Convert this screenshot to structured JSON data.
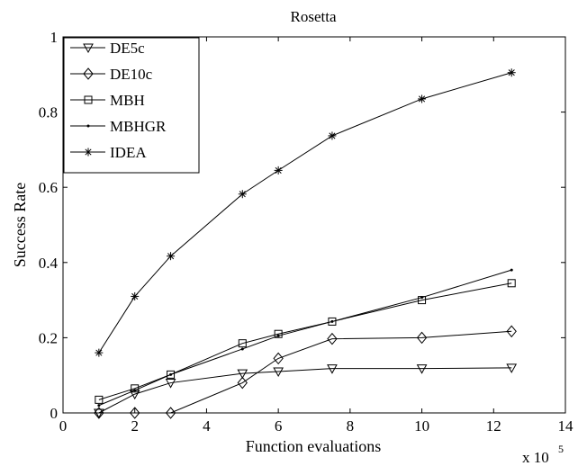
{
  "chart_data": {
    "type": "line",
    "title": "Rosetta",
    "xlabel": "Function evaluations",
    "ylabel": "Success Rate",
    "x_multiplier": {
      "base": "x 10",
      "exponent": "5"
    },
    "xlim": [
      0,
      14
    ],
    "ylim": [
      0,
      1
    ],
    "xticks": [
      0,
      2,
      4,
      6,
      8,
      10,
      12,
      14
    ],
    "yticks": [
      0,
      0.2,
      0.4,
      0.6,
      0.8,
      1
    ],
    "xtick_labels": [
      "0",
      "2",
      "4",
      "6",
      "8",
      "10",
      "12",
      "14"
    ],
    "ytick_labels": [
      "0",
      "0.2",
      "0.4",
      "0.6",
      "0.8",
      "1"
    ],
    "grid": false,
    "legend_position": "top-left",
    "series": [
      {
        "name": "DE5c",
        "marker": "triangle-down",
        "x": [
          1,
          2,
          3,
          5,
          6,
          7.5,
          10,
          12.5
        ],
        "y": [
          0.0,
          0.05,
          0.08,
          0.105,
          0.11,
          0.118,
          0.118,
          0.12
        ]
      },
      {
        "name": "DE10c",
        "marker": "diamond",
        "x": [
          1,
          2,
          3,
          5,
          6,
          7.5,
          10,
          12.5
        ],
        "y": [
          0.0,
          0.0,
          0.0,
          0.08,
          0.145,
          0.197,
          0.2,
          0.217
        ]
      },
      {
        "name": "MBH",
        "marker": "square",
        "x": [
          1,
          2,
          3,
          5,
          6,
          7.5,
          10,
          12.5
        ],
        "y": [
          0.035,
          0.065,
          0.102,
          0.185,
          0.21,
          0.243,
          0.3,
          0.345
        ]
      },
      {
        "name": "MBHGR",
        "marker": "dot",
        "x": [
          1,
          2,
          3,
          5,
          6,
          7.5,
          10,
          12.5
        ],
        "y": [
          0.02,
          0.06,
          0.102,
          0.17,
          0.205,
          0.243,
          0.307,
          0.38
        ]
      },
      {
        "name": "IDEA",
        "marker": "asterisk",
        "x": [
          1,
          2,
          3,
          5,
          6,
          7.5,
          10,
          12.5
        ],
        "y": [
          0.16,
          0.31,
          0.417,
          0.582,
          0.645,
          0.737,
          0.835,
          0.905
        ]
      }
    ]
  }
}
